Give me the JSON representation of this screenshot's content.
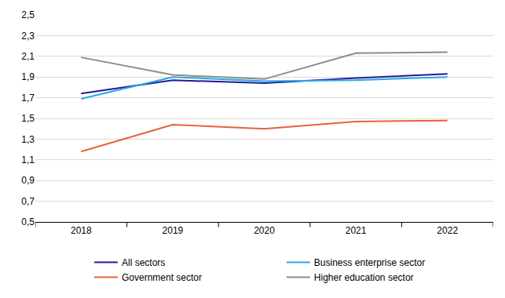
{
  "chart_data": {
    "type": "line",
    "categories": [
      "2018",
      "2019",
      "2020",
      "2021",
      "2022"
    ],
    "series": [
      {
        "name": "All sectors",
        "color": "#1f1a9e",
        "values": [
          1.74,
          1.87,
          1.84,
          1.89,
          1.93
        ]
      },
      {
        "name": "Business enterprise sector",
        "color": "#29a8e0",
        "values": [
          1.69,
          1.9,
          1.86,
          1.87,
          1.9
        ]
      },
      {
        "name": "Government sector",
        "color": "#e8603c",
        "values": [
          1.18,
          1.44,
          1.4,
          1.47,
          1.48
        ]
      },
      {
        "name": "Higher education sector",
        "color": "#8c8c8c",
        "values": [
          2.09,
          1.92,
          1.88,
          2.13,
          2.14
        ]
      }
    ],
    "ylim": [
      0.5,
      2.5
    ],
    "yticks": [
      {
        "value": 0.5,
        "label": "0,5"
      },
      {
        "value": 0.7,
        "label": "0,7"
      },
      {
        "value": 0.9,
        "label": "0,9"
      },
      {
        "value": 1.1,
        "label": "1,1"
      },
      {
        "value": 1.3,
        "label": "1,3"
      },
      {
        "value": 1.5,
        "label": "1,5"
      },
      {
        "value": 1.7,
        "label": "1,7"
      },
      {
        "value": 1.9,
        "label": "1,9"
      },
      {
        "value": 2.1,
        "label": "2,1"
      },
      {
        "value": 2.3,
        "label": "2,3"
      },
      {
        "value": 2.5,
        "label": "2,5"
      }
    ],
    "grid": true,
    "legend": "bottom"
  }
}
